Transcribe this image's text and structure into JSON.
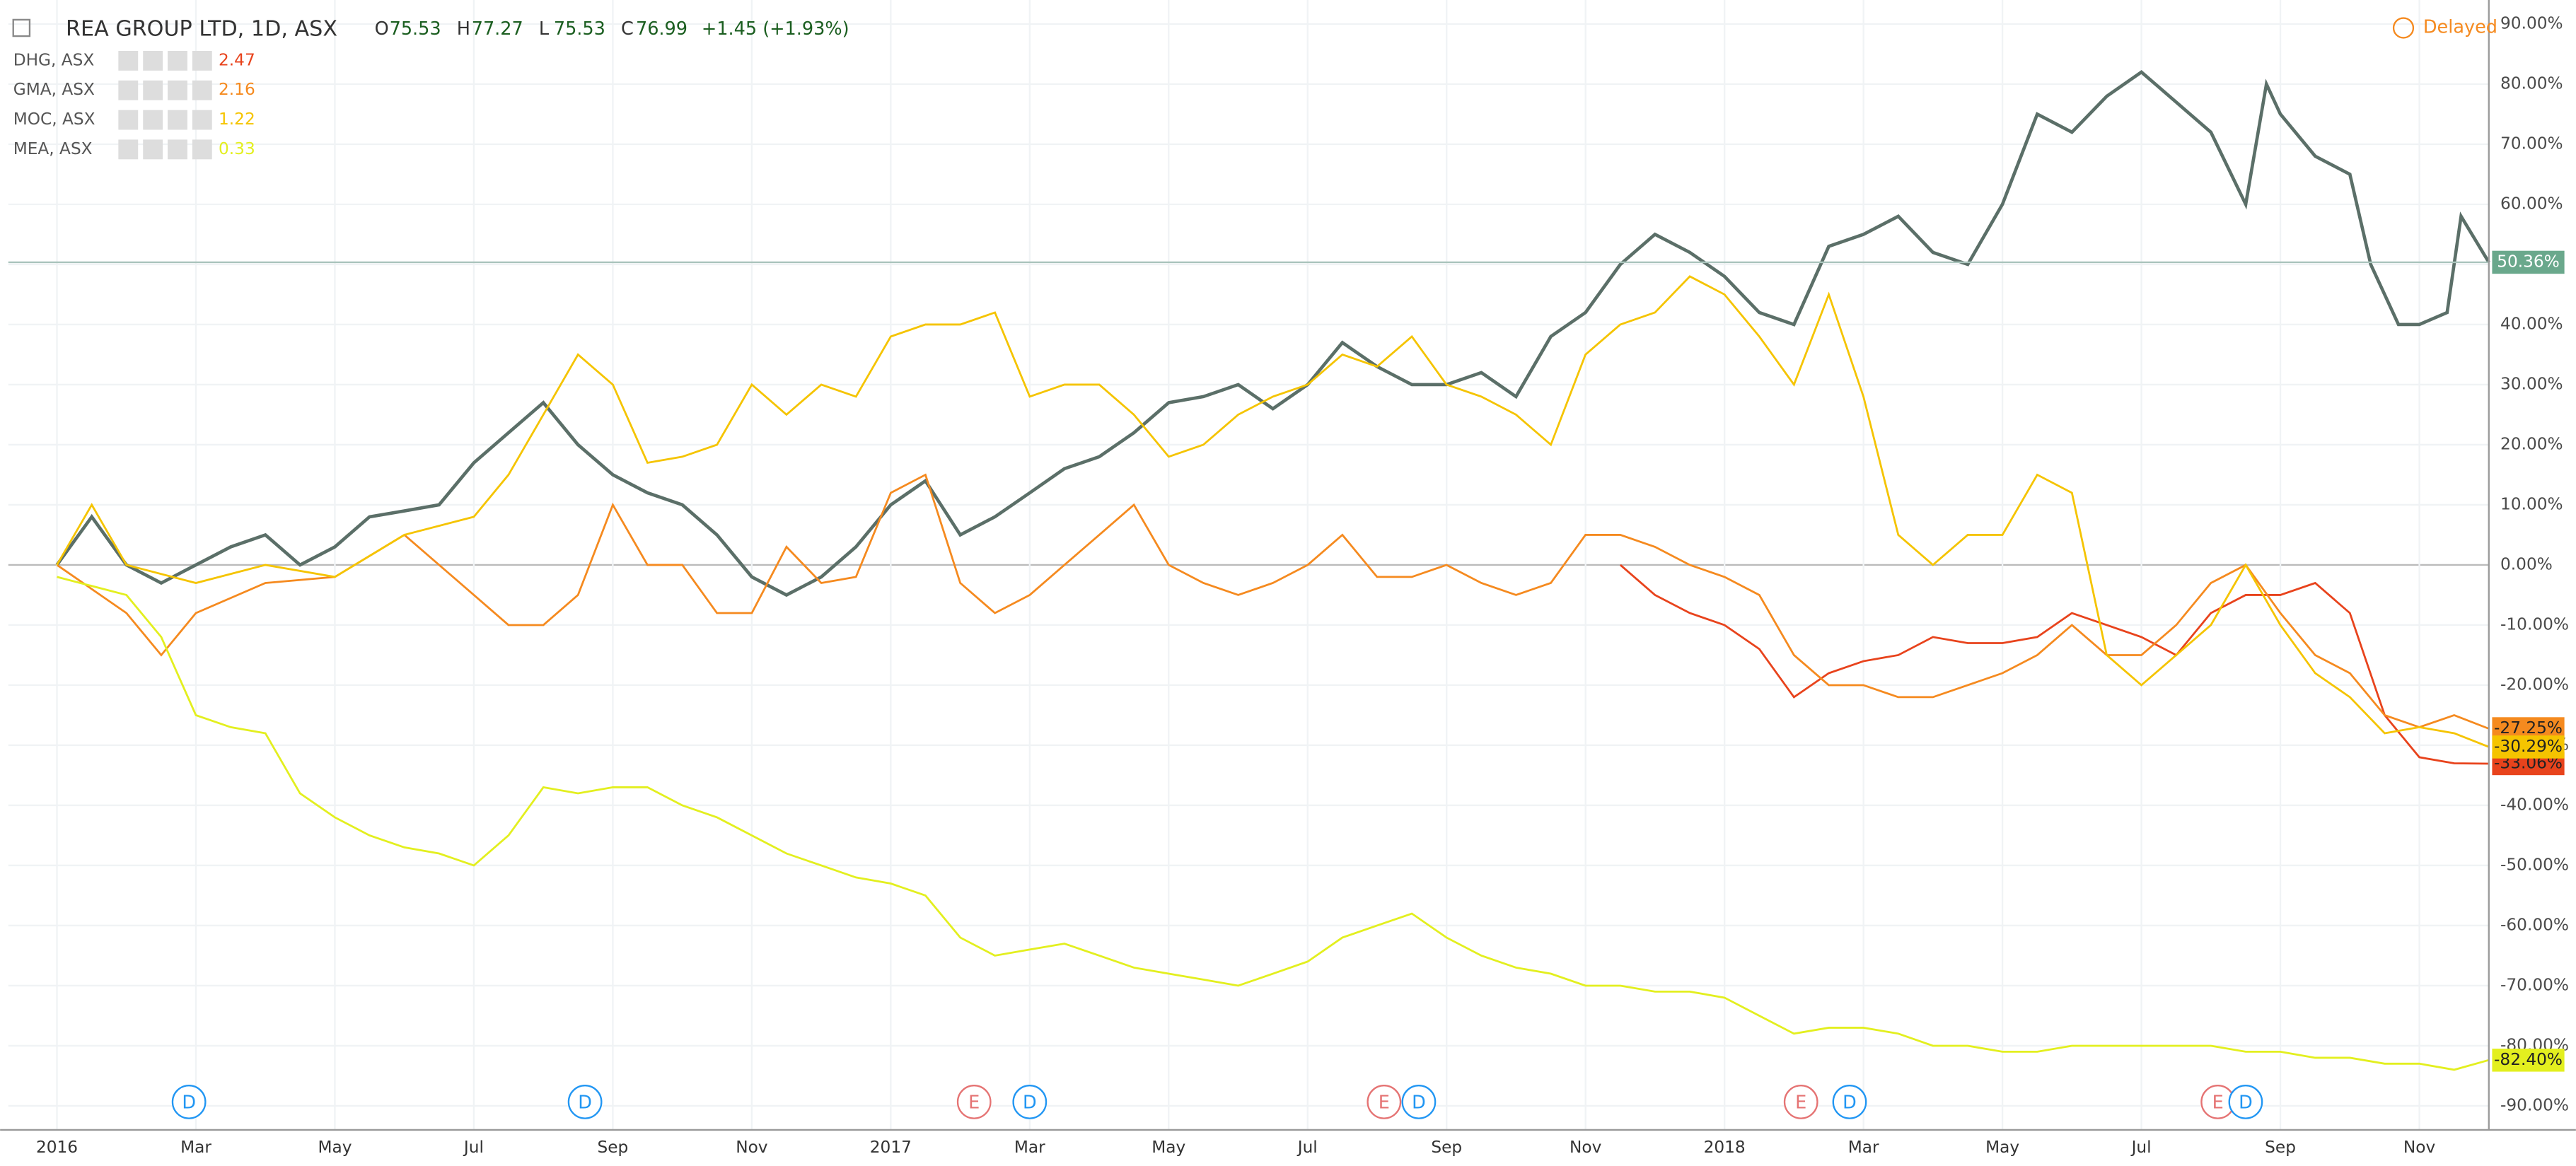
{
  "header": {
    "title": "REA GROUP LTD, 1D, ASX",
    "ohlc": [
      {
        "key": "O",
        "val": "75.53"
      },
      {
        "key": "H",
        "val": "77.27"
      },
      {
        "key": "L",
        "val": "75.53"
      },
      {
        "key": "C",
        "val": "76.99"
      }
    ],
    "change": "+1.45 (+1.93%)",
    "status": "Delayed"
  },
  "legend_values": [
    "2.47",
    "2.16",
    "1.22",
    "0.33"
  ],
  "chart_data": {
    "type": "line",
    "grid": true,
    "xlim": [
      -0.7,
      35
    ],
    "ylim": [
      -94,
      94
    ],
    "xticks": [
      {
        "value": 0,
        "label": "2016"
      },
      {
        "value": 2,
        "label": "Mar"
      },
      {
        "value": 4,
        "label": "May"
      },
      {
        "value": 6,
        "label": "Jul"
      },
      {
        "value": 8,
        "label": "Sep"
      },
      {
        "value": 10,
        "label": "Nov"
      },
      {
        "value": 12,
        "label": "2017"
      },
      {
        "value": 14,
        "label": "Mar"
      },
      {
        "value": 16,
        "label": "May"
      },
      {
        "value": 18,
        "label": "Jul"
      },
      {
        "value": 20,
        "label": "Sep"
      },
      {
        "value": 22,
        "label": "Nov"
      },
      {
        "value": 24,
        "label": "2018"
      },
      {
        "value": 26,
        "label": "Mar"
      },
      {
        "value": 28,
        "label": "May"
      },
      {
        "value": 30,
        "label": "Jul"
      },
      {
        "value": 32,
        "label": "Sep"
      },
      {
        "value": 34,
        "label": "Nov"
      }
    ],
    "yticks": [
      {
        "value": 90,
        "label": "90.00%"
      },
      {
        "value": 80,
        "label": "80.00%"
      },
      {
        "value": 70,
        "label": "70.00%"
      },
      {
        "value": 60,
        "label": "60.00%"
      },
      {
        "value": 50,
        "label": "50.00%"
      },
      {
        "value": 40,
        "label": "40.00%"
      },
      {
        "value": 30,
        "label": "30.00%"
      },
      {
        "value": 20,
        "label": "20.00%"
      },
      {
        "value": 10,
        "label": "10.00%"
      },
      {
        "value": 0,
        "label": "0.00%"
      },
      {
        "value": -10,
        "label": "-10.00%"
      },
      {
        "value": -20,
        "label": "-20.00%"
      },
      {
        "value": -30,
        "label": "-30.00%"
      },
      {
        "value": -40,
        "label": "-40.00%"
      },
      {
        "value": -50,
        "label": "-50.00%"
      },
      {
        "value": -60,
        "label": "-60.00%"
      },
      {
        "value": -70,
        "label": "-70.00%"
      },
      {
        "value": -80,
        "label": "-80.00%"
      },
      {
        "value": -90,
        "label": "-90.00%"
      }
    ],
    "series": [
      {
        "name": "REA GROUP LTD",
        "color": "#5b6f68",
        "x": [
          0,
          0.5,
          1,
          1.5,
          2,
          2.5,
          3,
          3.5,
          4,
          4.5,
          5,
          5.5,
          6,
          6.5,
          7,
          7.5,
          8,
          8.5,
          9,
          9.5,
          10,
          10.5,
          11,
          11.5,
          12,
          12.5,
          13,
          13.5,
          14,
          14.5,
          15,
          15.5,
          16,
          16.5,
          17,
          17.5,
          18,
          18.5,
          19,
          19.5,
          20,
          20.5,
          21,
          21.5,
          22,
          22.5,
          23,
          23.5,
          24,
          24.5,
          25,
          25.5,
          26,
          26.5,
          27,
          27.5,
          28,
          28.5,
          29,
          29.5,
          30,
          30.5,
          31,
          31.5,
          31.8,
          32,
          32.5,
          33,
          33.3,
          33.7,
          34,
          34.4,
          34.6,
          35
        ],
        "values": [
          0,
          8,
          0,
          -3,
          0,
          3,
          5,
          0,
          3,
          8,
          9,
          10,
          17,
          22,
          27,
          20,
          15,
          12,
          10,
          5,
          -2,
          -5,
          -2,
          3,
          10,
          14,
          5,
          8,
          12,
          16,
          18,
          22,
          27,
          28,
          30,
          26,
          30,
          37,
          33,
          30,
          30,
          32,
          28,
          38,
          42,
          50,
          55,
          52,
          48,
          42,
          40,
          53,
          55,
          58,
          52,
          50,
          60,
          75,
          72,
          78,
          82,
          77,
          72,
          60,
          80,
          75,
          68,
          65,
          50,
          40,
          40,
          42,
          58,
          50.36
        ]
      },
      {
        "name": "DHG, ASX",
        "color": "#e8431c",
        "x": [
          22.5,
          23,
          23.5,
          24,
          24.5,
          25,
          25.5,
          26,
          26.5,
          27,
          27.5,
          28,
          28.5,
          29,
          29.5,
          30,
          30.5,
          31,
          31.5,
          32,
          32.5,
          33,
          33.5,
          34,
          34.5,
          35
        ],
        "values": [
          0,
          -5,
          -8,
          -10,
          -14,
          -22,
          -18,
          -16,
          -15,
          -12,
          -13,
          -13,
          -12,
          -8,
          -10,
          -12,
          -15,
          -8,
          -5,
          -5,
          -3,
          -8,
          -25,
          -32,
          -33,
          -33.06
        ]
      },
      {
        "name": "GMA, ASX",
        "color": "#f58a1f",
        "x": [
          0,
          1,
          1.5,
          2,
          3,
          4,
          5,
          6,
          6.5,
          7,
          7.5,
          8,
          8.5,
          9,
          9.5,
          10,
          10.5,
          11,
          11.5,
          12,
          12.5,
          13,
          13.5,
          14,
          14.5,
          15,
          15.5,
          16,
          16.5,
          17,
          17.5,
          18,
          18.5,
          19,
          19.5,
          20,
          20.5,
          21,
          21.5,
          22,
          22.5,
          23,
          23.5,
          24,
          24.5,
          25,
          25.5,
          26,
          26.5,
          27,
          27.5,
          28,
          28.5,
          29,
          29.5,
          30,
          30.5,
          31,
          31.5,
          32,
          32.5,
          33,
          33.5,
          34,
          34.5,
          35
        ],
        "values": [
          0,
          -8,
          -15,
          -8,
          -3,
          -2,
          5,
          -5,
          -10,
          -10,
          -5,
          10,
          0,
          0,
          -8,
          -8,
          3,
          -3,
          -2,
          12,
          15,
          -3,
          -8,
          -5,
          0,
          5,
          10,
          0,
          -3,
          -5,
          -3,
          0,
          5,
          -2,
          -2,
          0,
          -3,
          -5,
          -3,
          5,
          5,
          3,
          0,
          -2,
          -5,
          -15,
          -20,
          -20,
          -22,
          -22,
          -20,
          -18,
          -15,
          -10,
          -15,
          -15,
          -10,
          -3,
          0,
          -8,
          -15,
          -18,
          -25,
          -27,
          -25,
          -27.25
        ]
      },
      {
        "name": "MOC, ASX",
        "color": "#f5c400",
        "x": [
          0,
          0.5,
          1,
          2,
          3,
          4,
          5,
          6,
          6.5,
          7,
          7.5,
          8,
          8.5,
          9,
          9.5,
          10,
          10.5,
          11,
          11.5,
          12,
          12.5,
          13,
          13.5,
          14,
          14.5,
          15,
          15.5,
          16,
          16.5,
          17,
          17.5,
          18,
          18.5,
          19,
          19.5,
          20,
          20.5,
          21,
          21.5,
          22,
          22.5,
          23,
          23.5,
          24,
          24.5,
          25,
          25.5,
          26,
          26.5,
          27,
          27.5,
          28,
          28.5,
          29,
          29.5,
          30,
          30.5,
          31,
          31.5,
          32,
          32.5,
          33,
          33.5,
          34,
          34.5,
          35
        ],
        "values": [
          0,
          10,
          0,
          -3,
          0,
          -2,
          5,
          8,
          15,
          25,
          35,
          30,
          17,
          18,
          20,
          30,
          25,
          30,
          28,
          38,
          40,
          40,
          42,
          28,
          30,
          30,
          25,
          18,
          20,
          25,
          28,
          30,
          35,
          33,
          38,
          30,
          28,
          25,
          20,
          35,
          40,
          42,
          48,
          45,
          38,
          30,
          45,
          28,
          5,
          0,
          5,
          5,
          15,
          12,
          -15,
          -20,
          -15,
          -10,
          0,
          -10,
          -18,
          -22,
          -28,
          -27,
          -28,
          -30.29
        ]
      },
      {
        "name": "MEA, ASX",
        "color": "#e3ef1f",
        "x": [
          0,
          1,
          1.5,
          2,
          2.5,
          3,
          3.5,
          4,
          4.5,
          5,
          5.5,
          6,
          6.5,
          7,
          7.5,
          8,
          8.5,
          9,
          9.5,
          10,
          10.5,
          11,
          11.5,
          12,
          12.5,
          13,
          13.5,
          14,
          14.5,
          15,
          15.5,
          16,
          16.5,
          17,
          17.5,
          18,
          18.5,
          19,
          19.5,
          20,
          20.5,
          21,
          21.5,
          22,
          22.5,
          23,
          23.5,
          24,
          24.5,
          25,
          25.5,
          26,
          26.5,
          27,
          27.5,
          28,
          28.5,
          29,
          29.5,
          30,
          30.5,
          31,
          31.5,
          32,
          32.5,
          33,
          33.5,
          34,
          34.5,
          35
        ],
        "values": [
          -2,
          -5,
          -12,
          -25,
          -27,
          -28,
          -38,
          -42,
          -45,
          -47,
          -48,
          -50,
          -45,
          -37,
          -38,
          -37,
          -37,
          -40,
          -42,
          -45,
          -48,
          -50,
          -52,
          -53,
          -55,
          -62,
          -65,
          -64,
          -63,
          -65,
          -67,
          -68,
          -69,
          -70,
          -68,
          -66,
          -62,
          -60,
          -58,
          -62,
          -65,
          -67,
          -68,
          -70,
          -70,
          -71,
          -71,
          -72,
          -75,
          -78,
          -77,
          -77,
          -78,
          -80,
          -80,
          -81,
          -81,
          -80,
          -80,
          -80,
          -80,
          -80,
          -81,
          -81,
          -82,
          -82,
          -83,
          -83,
          -84,
          -82.4
        ]
      }
    ],
    "last_value_labels": [
      {
        "value": 50.36,
        "label": "50.36%"
      },
      {
        "value": -33.06,
        "label": "-33.06%"
      },
      {
        "value": -27.25,
        "label": "-27.25%"
      },
      {
        "value": -30.29,
        "label": "-30.29%"
      },
      {
        "value": -82.4,
        "label": "-82.40%"
      }
    ],
    "events": [
      {
        "x": 1.9,
        "label": "D"
      },
      {
        "x": 7.6,
        "label": "D"
      },
      {
        "x": 13.2,
        "label": "E"
      },
      {
        "x": 14,
        "label": "D"
      },
      {
        "x": 19.1,
        "label": "E"
      },
      {
        "x": 19.6,
        "label": "D"
      },
      {
        "x": 25.1,
        "label": "E"
      },
      {
        "x": 25.8,
        "label": "D"
      },
      {
        "x": 31.1,
        "label": "E"
      },
      {
        "x": 31.5,
        "label": "D"
      }
    ]
  }
}
